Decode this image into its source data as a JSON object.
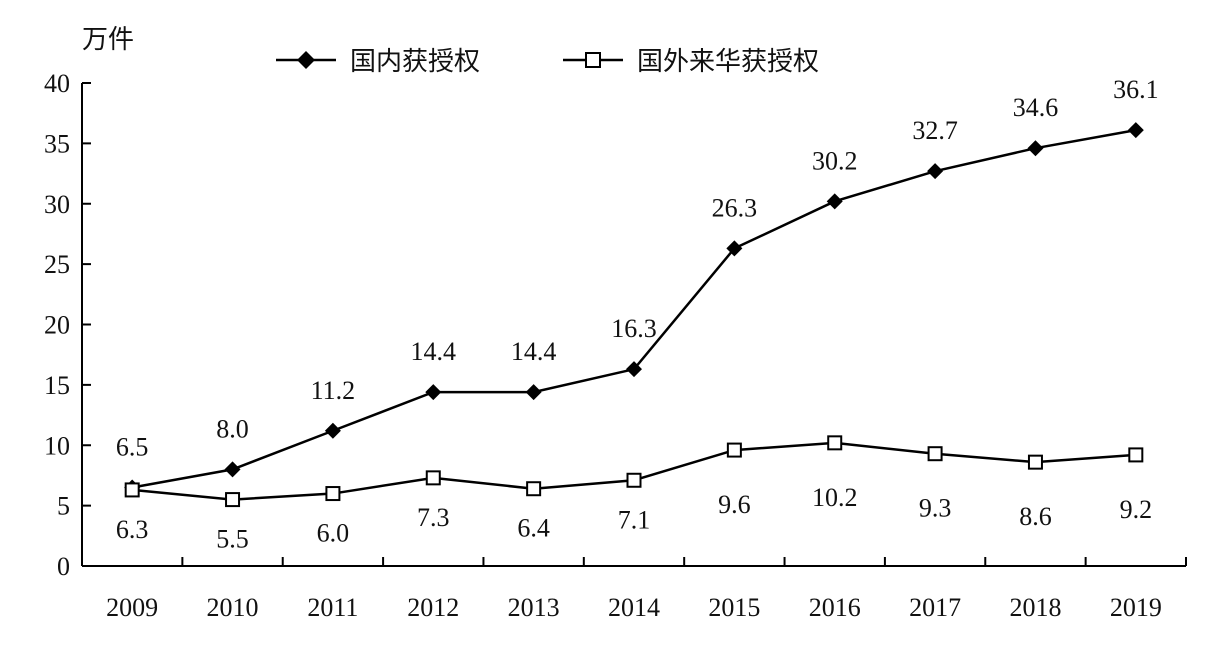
{
  "chart_data": {
    "type": "line",
    "unit_label": "万件",
    "x": [
      "2009",
      "2010",
      "2011",
      "2012",
      "2013",
      "2014",
      "2015",
      "2016",
      "2017",
      "2018",
      "2019"
    ],
    "ylim": [
      0,
      40
    ],
    "yticks": [
      0,
      5,
      10,
      15,
      20,
      25,
      30,
      35,
      40
    ],
    "grid": false,
    "legend_position": "top-center",
    "series": [
      {
        "name": "国内获授权",
        "marker": "filled-diamond",
        "color": "#000000",
        "values": [
          6.5,
          8.0,
          11.2,
          14.4,
          14.4,
          16.3,
          26.3,
          30.2,
          32.7,
          34.6,
          36.1
        ],
        "labels": [
          "6.5",
          "8.0",
          "11.2",
          "14.4",
          "14.4",
          "16.3",
          "26.3",
          "30.2",
          "32.7",
          "34.6",
          "36.1"
        ]
      },
      {
        "name": "国外来华获授权",
        "marker": "hollow-square",
        "color": "#000000",
        "values": [
          6.3,
          5.5,
          6.0,
          7.3,
          6.4,
          7.1,
          9.6,
          10.2,
          9.3,
          8.6,
          9.2
        ],
        "labels": [
          "6.3",
          "5.5",
          "6.0",
          "7.3",
          "6.4",
          "7.1",
          "9.6",
          "10.2",
          "9.3",
          "8.6",
          "9.2"
        ]
      }
    ]
  }
}
